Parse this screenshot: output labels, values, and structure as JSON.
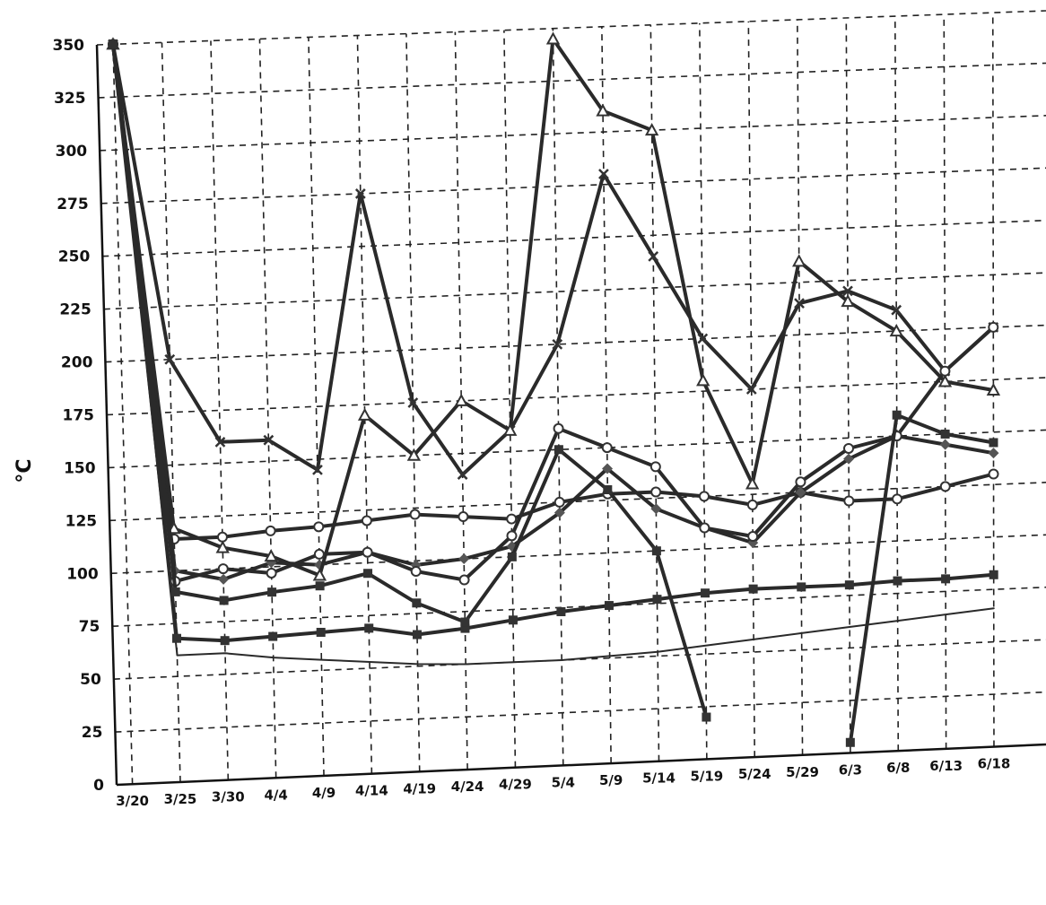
{
  "chart_data": {
    "type": "line",
    "title": "",
    "xlabel": "",
    "ylabel": "°C",
    "ylim": [
      0,
      350
    ],
    "yticks": [
      0,
      25,
      50,
      75,
      100,
      125,
      150,
      175,
      200,
      225,
      250,
      275,
      300,
      325,
      350
    ],
    "x_categories": [
      "3/20",
      "3/25",
      "3/30",
      "4/4",
      "4/9",
      "4/14",
      "4/19",
      "4/24",
      "4/29",
      "5/4",
      "5/9",
      "5/14",
      "5/19",
      "5/24",
      "5/29",
      "6/3",
      "6/8",
      "6/13",
      "6/18"
    ],
    "grid": true,
    "legend": "none",
    "series": [
      {
        "marker": "none",
        "values": [
          350,
          60,
          60,
          57,
          55,
          53,
          51,
          50,
          50,
          50,
          51,
          52,
          54,
          56,
          58,
          60,
          62,
          64,
          66
        ]
      },
      {
        "marker": "square",
        "values": [
          350,
          68,
          66,
          67,
          68,
          69,
          65,
          67,
          70,
          73,
          75,
          77,
          79,
          80,
          80,
          80,
          81,
          81,
          82
        ]
      },
      {
        "marker": "circle",
        "values": [
          350,
          115,
          115,
          117,
          118,
          120,
          122,
          120,
          118,
          125,
          128,
          128,
          125,
          120,
          125,
          120,
          120,
          125,
          130
        ]
      },
      {
        "marker": "diamond",
        "values": [
          350,
          100,
          95,
          102,
          100,
          105,
          98,
          100,
          105,
          120,
          140,
          120,
          110,
          102,
          125,
          140,
          150,
          145,
          140
        ]
      },
      {
        "marker": "cross",
        "values": [
          350,
          200,
          160,
          160,
          145,
          275,
          175,
          140,
          160,
          200,
          280,
          240,
          200,
          175,
          215,
          220,
          210,
          180,
          200
        ]
      },
      {
        "marker": "triangle",
        "values": [
          350,
          120,
          110,
          105,
          95,
          170,
          150,
          175,
          160,
          345,
          310,
          300,
          180,
          130,
          235,
          215,
          200,
          175,
          170
        ]
      },
      {
        "marker": "circle",
        "values": [
          350,
          95,
          100,
          97,
          105,
          105,
          95,
          90,
          110,
          160,
          150,
          140,
          110,
          105,
          130,
          145,
          150,
          180,
          200
        ]
      },
      {
        "marker": "square",
        "values": [
          350,
          90,
          85,
          88,
          90,
          95,
          80,
          70,
          100,
          150,
          130,
          100,
          20,
          null,
          null,
          5,
          160,
          150,
          145
        ]
      }
    ]
  }
}
